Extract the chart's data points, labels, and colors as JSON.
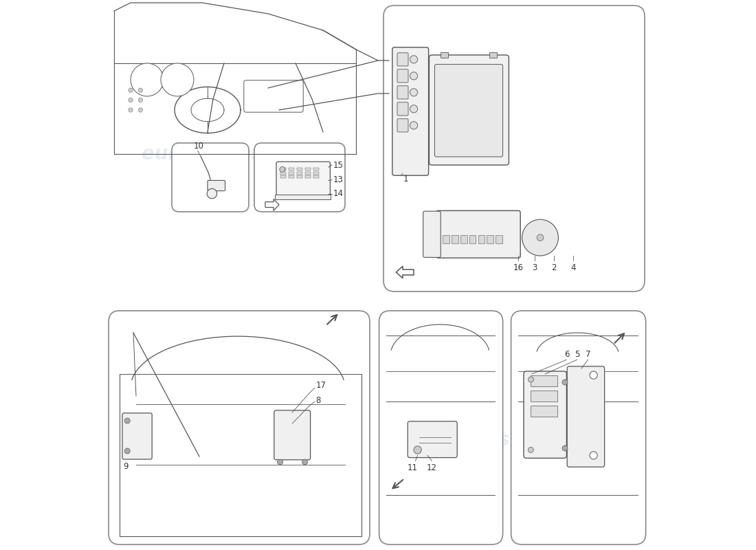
{
  "background_color": "#ffffff",
  "watermark_text": "eurospares",
  "watermark_color": "#c8d8e8",
  "watermark_alpha": 0.45,
  "line_color": "#555555",
  "box_edge": "#999999"
}
